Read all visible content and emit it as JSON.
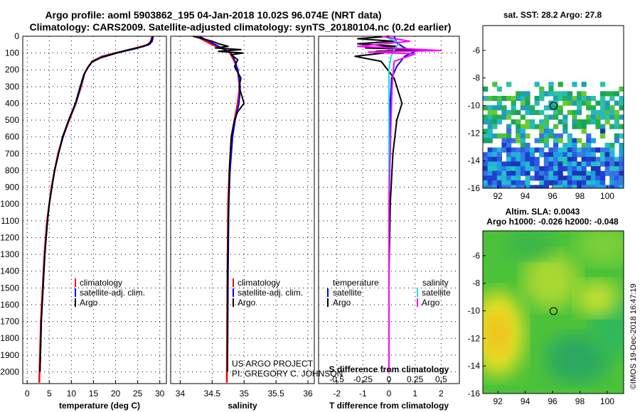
{
  "header": {
    "line1": "Argo profile: aoml 5903862_195 04-Jan-2018 10.02S 96.074E (NRT data)",
    "line2": "Climatology: CARS2009. Satellite-adjusted climatology: synTS_20180104.nc (0.2d earlier)"
  },
  "credits": {
    "project": "US ARGO PROJECT",
    "pi": "PI: GREGORY C. JOHNSON",
    "stamp": "©IMOS 19-Dec-2018 16:47:19"
  },
  "colors": {
    "climatology": "#ff0000",
    "satellite": "#0000ff",
    "argo": "#000000",
    "salinity_satellite": "#00e5e5",
    "salinity_argo": "#ff00ff"
  },
  "depth_axis": {
    "ticks": [
      0,
      100,
      200,
      300,
      400,
      500,
      600,
      700,
      800,
      900,
      1000,
      1100,
      1200,
      1300,
      1400,
      1500,
      1600,
      1700,
      1800,
      1900,
      2000
    ],
    "ylim": [
      0,
      2070
    ]
  },
  "chart_data": [
    {
      "type": "line",
      "id": "temperature",
      "xlabel": "temperature (deg C)",
      "xlim": [
        -1,
        31.5
      ],
      "xticks": [
        "0",
        "5",
        "10",
        "15",
        "20",
        "25",
        "30"
      ],
      "xtick_values": [
        0,
        5,
        10,
        15,
        20,
        25,
        30
      ],
      "legend": [
        "climatology",
        "satellite-adj. clim.",
        "Argo"
      ],
      "series": [
        {
          "name": "climatology",
          "color": "#ff0000",
          "points": [
            [
              28.3,
              0
            ],
            [
              28.0,
              30
            ],
            [
              27.4,
              50
            ],
            [
              24,
              75
            ],
            [
              20,
              100
            ],
            [
              17,
              120
            ],
            [
              14.7,
              150
            ],
            [
              13.9,
              180
            ],
            [
              13,
              220
            ],
            [
              12.2,
              300
            ],
            [
              11,
              400
            ],
            [
              9.5,
              500
            ],
            [
              8.1,
              600
            ],
            [
              7.0,
              700
            ],
            [
              6.2,
              800
            ],
            [
              5.5,
              900
            ],
            [
              5,
              1000
            ],
            [
              4.5,
              1100
            ],
            [
              4.2,
              1200
            ],
            [
              3.9,
              1300
            ],
            [
              3.7,
              1400
            ],
            [
              3.5,
              1500
            ],
            [
              3.3,
              1600
            ],
            [
              3.1,
              1700
            ],
            [
              3,
              1800
            ],
            [
              2.9,
              1900
            ],
            [
              2.8,
              2000
            ],
            [
              2.75,
              2065
            ]
          ]
        },
        {
          "name": "satellite-adj. clim.",
          "color": "#0000ff",
          "points": [
            [
              28.5,
              0
            ],
            [
              28.3,
              30
            ],
            [
              27.6,
              50
            ],
            [
              24.4,
              75
            ],
            [
              20.2,
              100
            ],
            [
              17.2,
              120
            ],
            [
              14.8,
              150
            ],
            [
              13.9,
              180
            ],
            [
              13,
              220
            ],
            [
              12.1,
              300
            ],
            [
              11,
              400
            ],
            [
              9.4,
              500
            ],
            [
              8.1,
              600
            ],
            [
              7.1,
              700
            ],
            [
              6.2,
              800
            ],
            [
              5.6,
              900
            ],
            [
              5,
              1000
            ],
            [
              4.6,
              1100
            ],
            [
              4.3,
              1200
            ],
            [
              4,
              1300
            ],
            [
              3.8,
              1400
            ],
            [
              3.6,
              1500
            ],
            [
              3.4,
              1600
            ],
            [
              3.2,
              1700
            ],
            [
              3.1,
              1800
            ],
            [
              3,
              1900
            ],
            [
              2.9,
              2000
            ]
          ]
        },
        {
          "name": "Argo",
          "color": "#000000",
          "points": [
            [
              28.4,
              0
            ],
            [
              28.2,
              20
            ],
            [
              27.8,
              40
            ],
            [
              26.5,
              60
            ],
            [
              23,
              80
            ],
            [
              21,
              95
            ],
            [
              19,
              110
            ],
            [
              16.5,
              130
            ],
            [
              14.6,
              155
            ],
            [
              13.7,
              185
            ],
            [
              12.8,
              230
            ],
            [
              12,
              300
            ],
            [
              10.9,
              400
            ],
            [
              9.4,
              500
            ],
            [
              8.0,
              600
            ],
            [
              7.1,
              700
            ],
            [
              6.2,
              800
            ],
            [
              5.6,
              900
            ],
            [
              5,
              1000
            ],
            [
              4.6,
              1100
            ],
            [
              4.3,
              1200
            ],
            [
              4,
              1300
            ],
            [
              3.8,
              1400
            ],
            [
              3.6,
              1500
            ],
            [
              3.4,
              1600
            ],
            [
              3.2,
              1700
            ],
            [
              3.1,
              1800
            ],
            [
              3,
              1900
            ],
            [
              2.9,
              2000
            ]
          ]
        }
      ]
    },
    {
      "type": "line",
      "id": "salinity",
      "xlabel": "salinity",
      "xlim": [
        33.85,
        36.1
      ],
      "xticks": [
        "34",
        "34.5",
        "35",
        "35.5",
        "36"
      ],
      "xtick_values": [
        34,
        34.5,
        35,
        35.5,
        36
      ],
      "legend": [
        "climatology",
        "satellite-adj. clim.",
        "Argo"
      ],
      "series": [
        {
          "name": "climatology",
          "color": "#ff0000",
          "points": [
            [
              34.25,
              0
            ],
            [
              34.35,
              20
            ],
            [
              34.5,
              50
            ],
            [
              34.7,
              80
            ],
            [
              34.78,
              100
            ],
            [
              34.85,
              150
            ],
            [
              34.9,
              200
            ],
            [
              34.93,
              300
            ],
            [
              34.9,
              400
            ],
            [
              34.85,
              500
            ],
            [
              34.8,
              600
            ],
            [
              34.77,
              800
            ],
            [
              34.75,
              1000
            ],
            [
              34.74,
              1400
            ],
            [
              34.73,
              2000
            ],
            [
              34.73,
              2065
            ]
          ]
        },
        {
          "name": "satellite-adj. clim.",
          "color": "#0000ff",
          "points": [
            [
              34.3,
              0
            ],
            [
              34.4,
              20
            ],
            [
              34.55,
              50
            ],
            [
              34.7,
              80
            ],
            [
              34.8,
              100
            ],
            [
              34.86,
              150
            ],
            [
              34.9,
              200
            ],
            [
              34.94,
              300
            ],
            [
              34.92,
              400
            ],
            [
              34.86,
              500
            ],
            [
              34.82,
              600
            ],
            [
              34.78,
              800
            ],
            [
              34.76,
              1000
            ],
            [
              34.75,
              1400
            ],
            [
              34.74,
              2000
            ]
          ]
        },
        {
          "name": "Argo",
          "color": "#000000",
          "points": [
            [
              34.2,
              0
            ],
            [
              34.35,
              15
            ],
            [
              34.5,
              30
            ],
            [
              34.6,
              45
            ],
            [
              34.75,
              60
            ],
            [
              34.55,
              70
            ],
            [
              34.95,
              80
            ],
            [
              34.6,
              90
            ],
            [
              34.98,
              100
            ],
            [
              34.8,
              110
            ],
            [
              34.9,
              140
            ],
            [
              34.85,
              180
            ],
            [
              34.95,
              250
            ],
            [
              34.92,
              300
            ],
            [
              35.0,
              400
            ],
            [
              34.9,
              450
            ],
            [
              34.85,
              500
            ],
            [
              34.8,
              600
            ],
            [
              34.77,
              800
            ],
            [
              34.76,
              1000
            ],
            [
              34.74,
              1400
            ],
            [
              34.74,
              2000
            ]
          ]
        }
      ]
    },
    {
      "type": "line",
      "id": "difference",
      "xlabel": "T difference from climatology",
      "xlabel_top": "S difference from climatology",
      "xlim": [
        -2.7,
        2.7
      ],
      "xticks": [
        "-2",
        "-1",
        "0",
        "1",
        "2"
      ],
      "xtick_values": [
        -2,
        -1,
        0,
        1,
        2
      ],
      "xticks_top": [
        "-0.5",
        "-0.25",
        "0",
        "0.25",
        "0.5"
      ],
      "xtick_top_values": [
        -0.5,
        -0.25,
        0,
        0.25,
        0.5
      ],
      "legend_titles": [
        "temperature",
        "salinity"
      ],
      "legend_left": [
        "satellite",
        "Argo"
      ],
      "legend_right": [
        "satellite",
        "Argo"
      ],
      "series": [
        {
          "name": "temperature satellite",
          "color": "#0000ff",
          "units": "degC",
          "points": [
            [
              0.2,
              0
            ],
            [
              0.3,
              40
            ],
            [
              0.6,
              70
            ],
            [
              1.0,
              90
            ],
            [
              0.6,
              120
            ],
            [
              0.3,
              180
            ],
            [
              0.1,
              250
            ],
            [
              0.05,
              400
            ],
            [
              0.02,
              600
            ],
            [
              0.01,
              1000
            ],
            [
              0,
              1500
            ],
            [
              0,
              2000
            ]
          ]
        },
        {
          "name": "temperature Argo",
          "color": "#000000",
          "units": "degC",
          "points": [
            [
              0,
              0
            ],
            [
              -1.2,
              15
            ],
            [
              0.2,
              30
            ],
            [
              -1.2,
              45
            ],
            [
              0.3,
              60
            ],
            [
              -0.9,
              70
            ],
            [
              1.3,
              80
            ],
            [
              -0.5,
              90
            ],
            [
              -0.2,
              100
            ],
            [
              -1.3,
              120
            ],
            [
              -0.3,
              150
            ],
            [
              0.2,
              250
            ],
            [
              0.5,
              400
            ],
            [
              0.3,
              500
            ],
            [
              0.15,
              700
            ],
            [
              0.05,
              1000
            ],
            [
              0,
              1400
            ],
            [
              0,
              2000
            ]
          ]
        },
        {
          "name": "salinity satellite",
          "color": "#00e5e5",
          "units": "PSU",
          "points": [
            [
              -0.05,
              0
            ],
            [
              0.1,
              40
            ],
            [
              0.05,
              80
            ],
            [
              0.02,
              120
            ],
            [
              0,
              200
            ],
            [
              0,
              600
            ],
            [
              0,
              1500
            ],
            [
              0,
              2000
            ]
          ]
        },
        {
          "name": "salinity Argo",
          "color": "#ff00ff",
          "units": "PSU",
          "points": [
            [
              -0.07,
              0
            ],
            [
              0.2,
              30
            ],
            [
              -0.3,
              60
            ],
            [
              0.5,
              85
            ],
            [
              -0.2,
              95
            ],
            [
              0.25,
              105
            ],
            [
              0.05,
              150
            ],
            [
              0.03,
              300
            ],
            [
              0.02,
              500
            ],
            [
              0,
              1000
            ],
            [
              0,
              2000
            ]
          ]
        }
      ]
    },
    {
      "type": "heatmap",
      "id": "sst_map",
      "title": "sat. SST: 28.2 Argo: 27.8",
      "xticks": [
        "92",
        "94",
        "96",
        "98",
        "100"
      ],
      "xtick_values": [
        92,
        94,
        96,
        98,
        100
      ],
      "yticks": [
        "-6",
        "-8",
        "-10",
        "-12",
        "-14",
        "-16"
      ],
      "ytick_values": [
        -6,
        -8,
        -10,
        -12,
        -14,
        -16
      ],
      "xlim": [
        90.9,
        101.2
      ],
      "ylim": [
        -16,
        -4.2
      ],
      "marker": {
        "lon": 96.074,
        "lat": -10.02
      }
    },
    {
      "type": "heatmap",
      "id": "sla_map",
      "title": "Altim. SLA: 0.0043",
      "subtitle": "Argo h1000: -0.026 h2000: -0.048",
      "xticks": [
        "92",
        "94",
        "96",
        "98",
        "100"
      ],
      "xtick_values": [
        92,
        94,
        96,
        98,
        100
      ],
      "yticks": [
        "-6",
        "-8",
        "-10",
        "-12",
        "-14",
        "-16"
      ],
      "ytick_values": [
        -6,
        -8,
        -10,
        -12,
        -14,
        -16
      ],
      "xlim": [
        90.9,
        101.2
      ],
      "ylim": [
        -16,
        -4.2
      ],
      "marker": {
        "lon": 96.074,
        "lat": -10.02
      }
    }
  ]
}
